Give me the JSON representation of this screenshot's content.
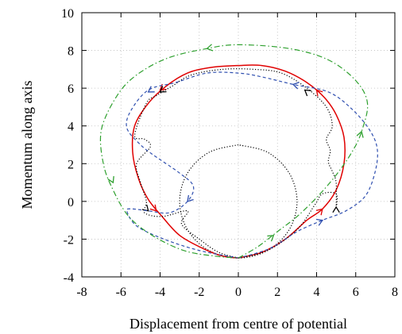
{
  "chart_data": {
    "type": "line",
    "title": "",
    "xlabel": "Displacement from centre of potential",
    "ylabel": "Momentum along axis",
    "xlim": [
      -8,
      8
    ],
    "ylim": [
      -4,
      10
    ],
    "xticks": [
      "-8",
      "-6",
      "-4",
      "-2",
      "0",
      "2",
      "4",
      "6",
      "8"
    ],
    "yticks": [
      "-4",
      "-2",
      "0",
      "2",
      "4",
      "6",
      "8",
      "10"
    ],
    "grid": true,
    "legend": "none",
    "series": [
      {
        "color": "#000000",
        "style": "dotted",
        "points": [
          [
            0,
            3
          ],
          [
            -1.5,
            2.6
          ],
          [
            -2.6,
            1.5
          ],
          [
            -3,
            0
          ],
          [
            -2.6,
            -1.5
          ],
          [
            -1.5,
            -2.6
          ],
          [
            0,
            -3
          ],
          [
            1.5,
            -2.6
          ],
          [
            2.6,
            -1.5
          ],
          [
            3,
            0
          ],
          [
            2.6,
            1.5
          ],
          [
            1.5,
            2.6
          ],
          [
            0,
            3
          ]
        ]
      },
      {
        "color": "#e00000",
        "style": "solid",
        "arrows": [
          [
            -4.0,
            5.9
          ],
          [
            4.0,
            5.9
          ],
          [
            4.3,
            -0.4
          ],
          [
            -4.2,
            -0.5
          ]
        ],
        "points": [
          [
            0,
            -3
          ],
          [
            1.2,
            -2.7
          ],
          [
            2.4,
            -2.0
          ],
          [
            3.5,
            -1.0
          ],
          [
            4.3,
            -0.4
          ],
          [
            5.0,
            0.6
          ],
          [
            5.4,
            2.0
          ],
          [
            5.4,
            3.4
          ],
          [
            5.0,
            4.6
          ],
          [
            4.4,
            5.5
          ],
          [
            3.5,
            6.3
          ],
          [
            2.4,
            6.9
          ],
          [
            1.2,
            7.2
          ],
          [
            0,
            7.2
          ],
          [
            -1.4,
            7.1
          ],
          [
            -2.6,
            6.8
          ],
          [
            -3.7,
            6.1
          ],
          [
            -4.6,
            5.2
          ],
          [
            -5.3,
            4.0
          ],
          [
            -5.4,
            2.6
          ],
          [
            -5.1,
            1.2
          ],
          [
            -4.6,
            0.1
          ],
          [
            -3.9,
            -0.8
          ],
          [
            -3.0,
            -1.8
          ],
          [
            -1.8,
            -2.5
          ],
          [
            -0.8,
            -2.9
          ],
          [
            0,
            -3
          ]
        ]
      },
      {
        "color": "#000000",
        "style": "dotted",
        "arrows": [
          [
            -4.0,
            5.8
          ],
          [
            3.4,
            5.9
          ],
          [
            5.0,
            -0.3
          ],
          [
            -4.6,
            -0.5
          ]
        ],
        "points": [
          [
            0,
            -3
          ],
          [
            1.5,
            -2.6
          ],
          [
            3.0,
            -1.5
          ],
          [
            3.9,
            -0.2
          ],
          [
            4.3,
            0.4
          ],
          [
            5.0,
            0.4
          ],
          [
            5.0,
            -0.3
          ],
          [
            5.0,
            1.0
          ],
          [
            4.8,
            1.6
          ],
          [
            4.6,
            2.1
          ],
          [
            4.7,
            2.7
          ],
          [
            4.5,
            3.3
          ],
          [
            4.8,
            4.0
          ],
          [
            4.5,
            5.0
          ],
          [
            3.5,
            6.0
          ],
          [
            2.2,
            6.8
          ],
          [
            0.8,
            7.0
          ],
          [
            -0.8,
            7.0
          ],
          [
            -2.4,
            6.7
          ],
          [
            -3.4,
            6.1
          ],
          [
            -4.2,
            5.6
          ],
          [
            -4.7,
            5.2
          ],
          [
            -5.3,
            3.5
          ],
          [
            -4.8,
            3.3
          ],
          [
            -4.5,
            2.9
          ],
          [
            -5.2,
            2.0
          ],
          [
            -5.0,
            1.0
          ],
          [
            -4.7,
            0
          ],
          [
            -4.8,
            -0.6
          ],
          [
            -3.9,
            -0.8
          ],
          [
            -2.6,
            -0.5
          ],
          [
            -2.9,
            -1.2
          ],
          [
            -2.0,
            -2.0
          ],
          [
            -1.0,
            -2.7
          ],
          [
            0,
            -3
          ]
        ]
      },
      {
        "color": "#3050b0",
        "style": "dashed",
        "arrows": [
          [
            -4.6,
            5.8
          ],
          [
            2.8,
            6.2
          ],
          [
            4.3,
            -1.0
          ],
          [
            -2.6,
            0
          ]
        ],
        "points": [
          [
            0,
            -3
          ],
          [
            1.6,
            -2.5
          ],
          [
            3.0,
            -1.6
          ],
          [
            4.3,
            -1.0
          ],
          [
            5.5,
            -0.5
          ],
          [
            6.5,
            0.3
          ],
          [
            7.0,
            1.6
          ],
          [
            7.1,
            2.8
          ],
          [
            6.7,
            3.8
          ],
          [
            5.8,
            4.9
          ],
          [
            4.6,
            5.8
          ],
          [
            2.8,
            6.2
          ],
          [
            1.2,
            6.6
          ],
          [
            0,
            6.8
          ],
          [
            -1.6,
            6.8
          ],
          [
            -3.2,
            6.3
          ],
          [
            -4.6,
            5.9
          ],
          [
            -5.5,
            4.8
          ],
          [
            -5.7,
            3.9
          ],
          [
            -5.1,
            3.1
          ],
          [
            -4.4,
            2.5
          ],
          [
            -3.0,
            1.5
          ],
          [
            -2.3,
            0.8
          ],
          [
            -2.6,
            0
          ],
          [
            -3.5,
            -0.6
          ],
          [
            -4.6,
            -0.5
          ],
          [
            -5.4,
            -0.4
          ],
          [
            -5.7,
            -0.5
          ],
          [
            -5.2,
            -1.3
          ],
          [
            -3.8,
            -2.0
          ],
          [
            -2.0,
            -2.6
          ],
          [
            0,
            -3
          ]
        ]
      },
      {
        "color": "#2ea02e",
        "style": "dashdot",
        "arrows": [
          [
            -1.6,
            8.1
          ],
          [
            6.3,
            3.7
          ],
          [
            1.8,
            -1.8
          ],
          [
            -6.4,
            1.0
          ]
        ],
        "points": [
          [
            0,
            -3
          ],
          [
            1.0,
            -2.4
          ],
          [
            2.0,
            -1.6
          ],
          [
            3.0,
            -0.8
          ],
          [
            4.0,
            0.2
          ],
          [
            5.0,
            1.4
          ],
          [
            5.8,
            2.6
          ],
          [
            6.3,
            3.7
          ],
          [
            6.6,
            5.2
          ],
          [
            6.0,
            6.4
          ],
          [
            4.6,
            7.5
          ],
          [
            2.6,
            8.1
          ],
          [
            0,
            8.3
          ],
          [
            -1.6,
            8.1
          ],
          [
            -3.6,
            7.6
          ],
          [
            -5.2,
            6.7
          ],
          [
            -6.2,
            5.6
          ],
          [
            -7.0,
            3.8
          ],
          [
            -6.9,
            2.0
          ],
          [
            -6.4,
            0.6
          ],
          [
            -5.6,
            -0.8
          ],
          [
            -4.4,
            -1.8
          ],
          [
            -2.8,
            -2.6
          ],
          [
            -1.2,
            -2.9
          ],
          [
            0,
            -3
          ]
        ]
      }
    ]
  }
}
